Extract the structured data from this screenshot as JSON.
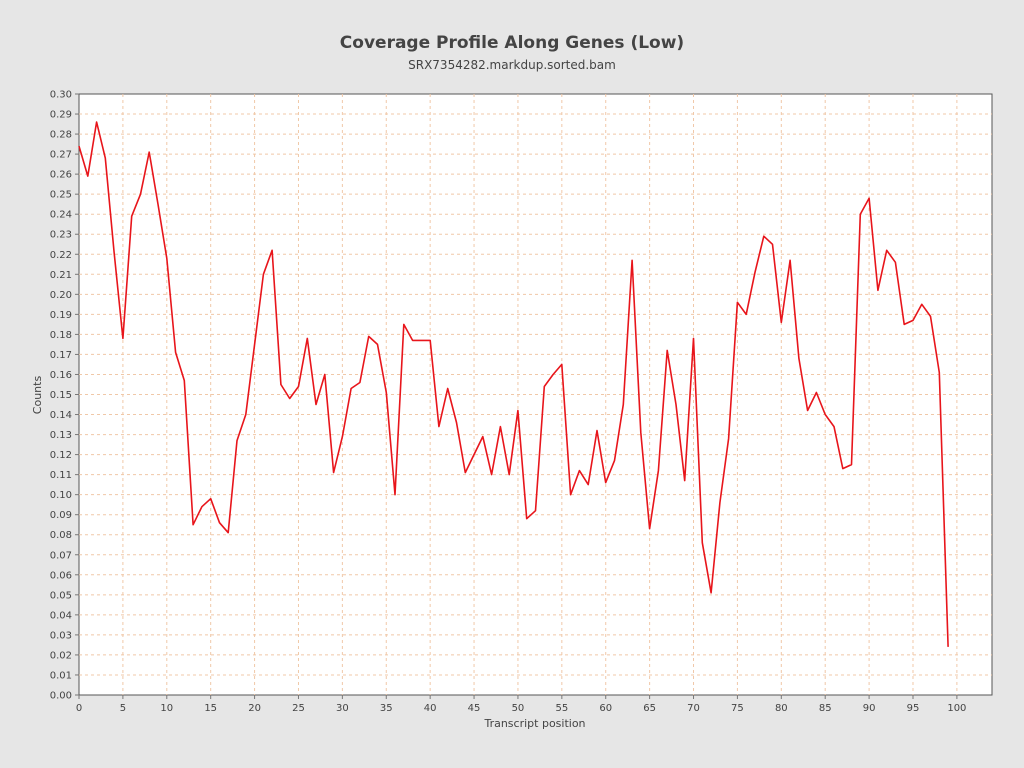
{
  "chart_data": {
    "type": "line",
    "title": "Coverage Profile Along Genes (Low)",
    "subtitle": "SRX7354282.markdup.sorted.bam",
    "xlabel": "Transcript position",
    "ylabel": "Counts",
    "xlim": [
      0,
      104
    ],
    "ylim": [
      0,
      0.3
    ],
    "x_ticks": [
      0,
      5,
      10,
      15,
      20,
      25,
      30,
      35,
      40,
      45,
      50,
      55,
      60,
      65,
      70,
      75,
      80,
      85,
      90,
      95,
      100
    ],
    "y_ticks": [
      "0.00",
      "0.01",
      "0.02",
      "0.03",
      "0.04",
      "0.05",
      "0.06",
      "0.07",
      "0.08",
      "0.09",
      "0.10",
      "0.11",
      "0.12",
      "0.13",
      "0.14",
      "0.15",
      "0.16",
      "0.17",
      "0.18",
      "0.19",
      "0.20",
      "0.21",
      "0.22",
      "0.23",
      "0.24",
      "0.25",
      "0.26",
      "0.27",
      "0.28",
      "0.29",
      "0.30"
    ],
    "grid": true,
    "series": [
      {
        "color": "#e8151b",
        "x": [
          0,
          1,
          2,
          3,
          4,
          5,
          6,
          7,
          8,
          9,
          10,
          11,
          12,
          13,
          14,
          15,
          16,
          17,
          18,
          19,
          20,
          21,
          22,
          23,
          24,
          25,
          26,
          27,
          28,
          29,
          30,
          31,
          32,
          33,
          34,
          35,
          36,
          37,
          38,
          39,
          40,
          41,
          42,
          43,
          44,
          45,
          46,
          47,
          48,
          49,
          50,
          51,
          52,
          53,
          54,
          55,
          56,
          57,
          58,
          59,
          60,
          61,
          62,
          63,
          64,
          65,
          66,
          67,
          68,
          69,
          70,
          71,
          72,
          73,
          74,
          75,
          76,
          77,
          78,
          79,
          80,
          81,
          82,
          83,
          84,
          85,
          86,
          87,
          88,
          89,
          90,
          91,
          92,
          93,
          94,
          95,
          96,
          97,
          98,
          99
        ],
        "values": [
          0.274,
          0.259,
          0.286,
          0.268,
          0.221,
          0.178,
          0.239,
          0.25,
          0.271,
          0.245,
          0.218,
          0.171,
          0.157,
          0.085,
          0.094,
          0.098,
          0.086,
          0.081,
          0.127,
          0.14,
          0.175,
          0.21,
          0.222,
          0.155,
          0.148,
          0.154,
          0.178,
          0.145,
          0.16,
          0.111,
          0.129,
          0.153,
          0.156,
          0.179,
          0.175,
          0.151,
          0.1,
          0.185,
          0.177,
          0.177,
          0.177,
          0.134,
          0.153,
          0.136,
          0.111,
          0.12,
          0.129,
          0.11,
          0.134,
          0.11,
          0.142,
          0.088,
          0.092,
          0.154,
          0.16,
          0.165,
          0.1,
          0.112,
          0.105,
          0.132,
          0.106,
          0.117,
          0.145,
          0.217,
          0.131,
          0.083,
          0.112,
          0.172,
          0.145,
          0.107,
          0.178,
          0.076,
          0.051,
          0.096,
          0.128,
          0.196,
          0.19,
          0.211,
          0.229,
          0.225,
          0.186,
          0.217,
          0.168,
          0.142,
          0.151,
          0.14,
          0.134,
          0.113,
          0.115,
          0.24,
          0.248,
          0.202,
          0.222,
          0.216,
          0.185,
          0.187,
          0.195,
          0.189,
          0.161,
          0.024
        ]
      }
    ]
  }
}
